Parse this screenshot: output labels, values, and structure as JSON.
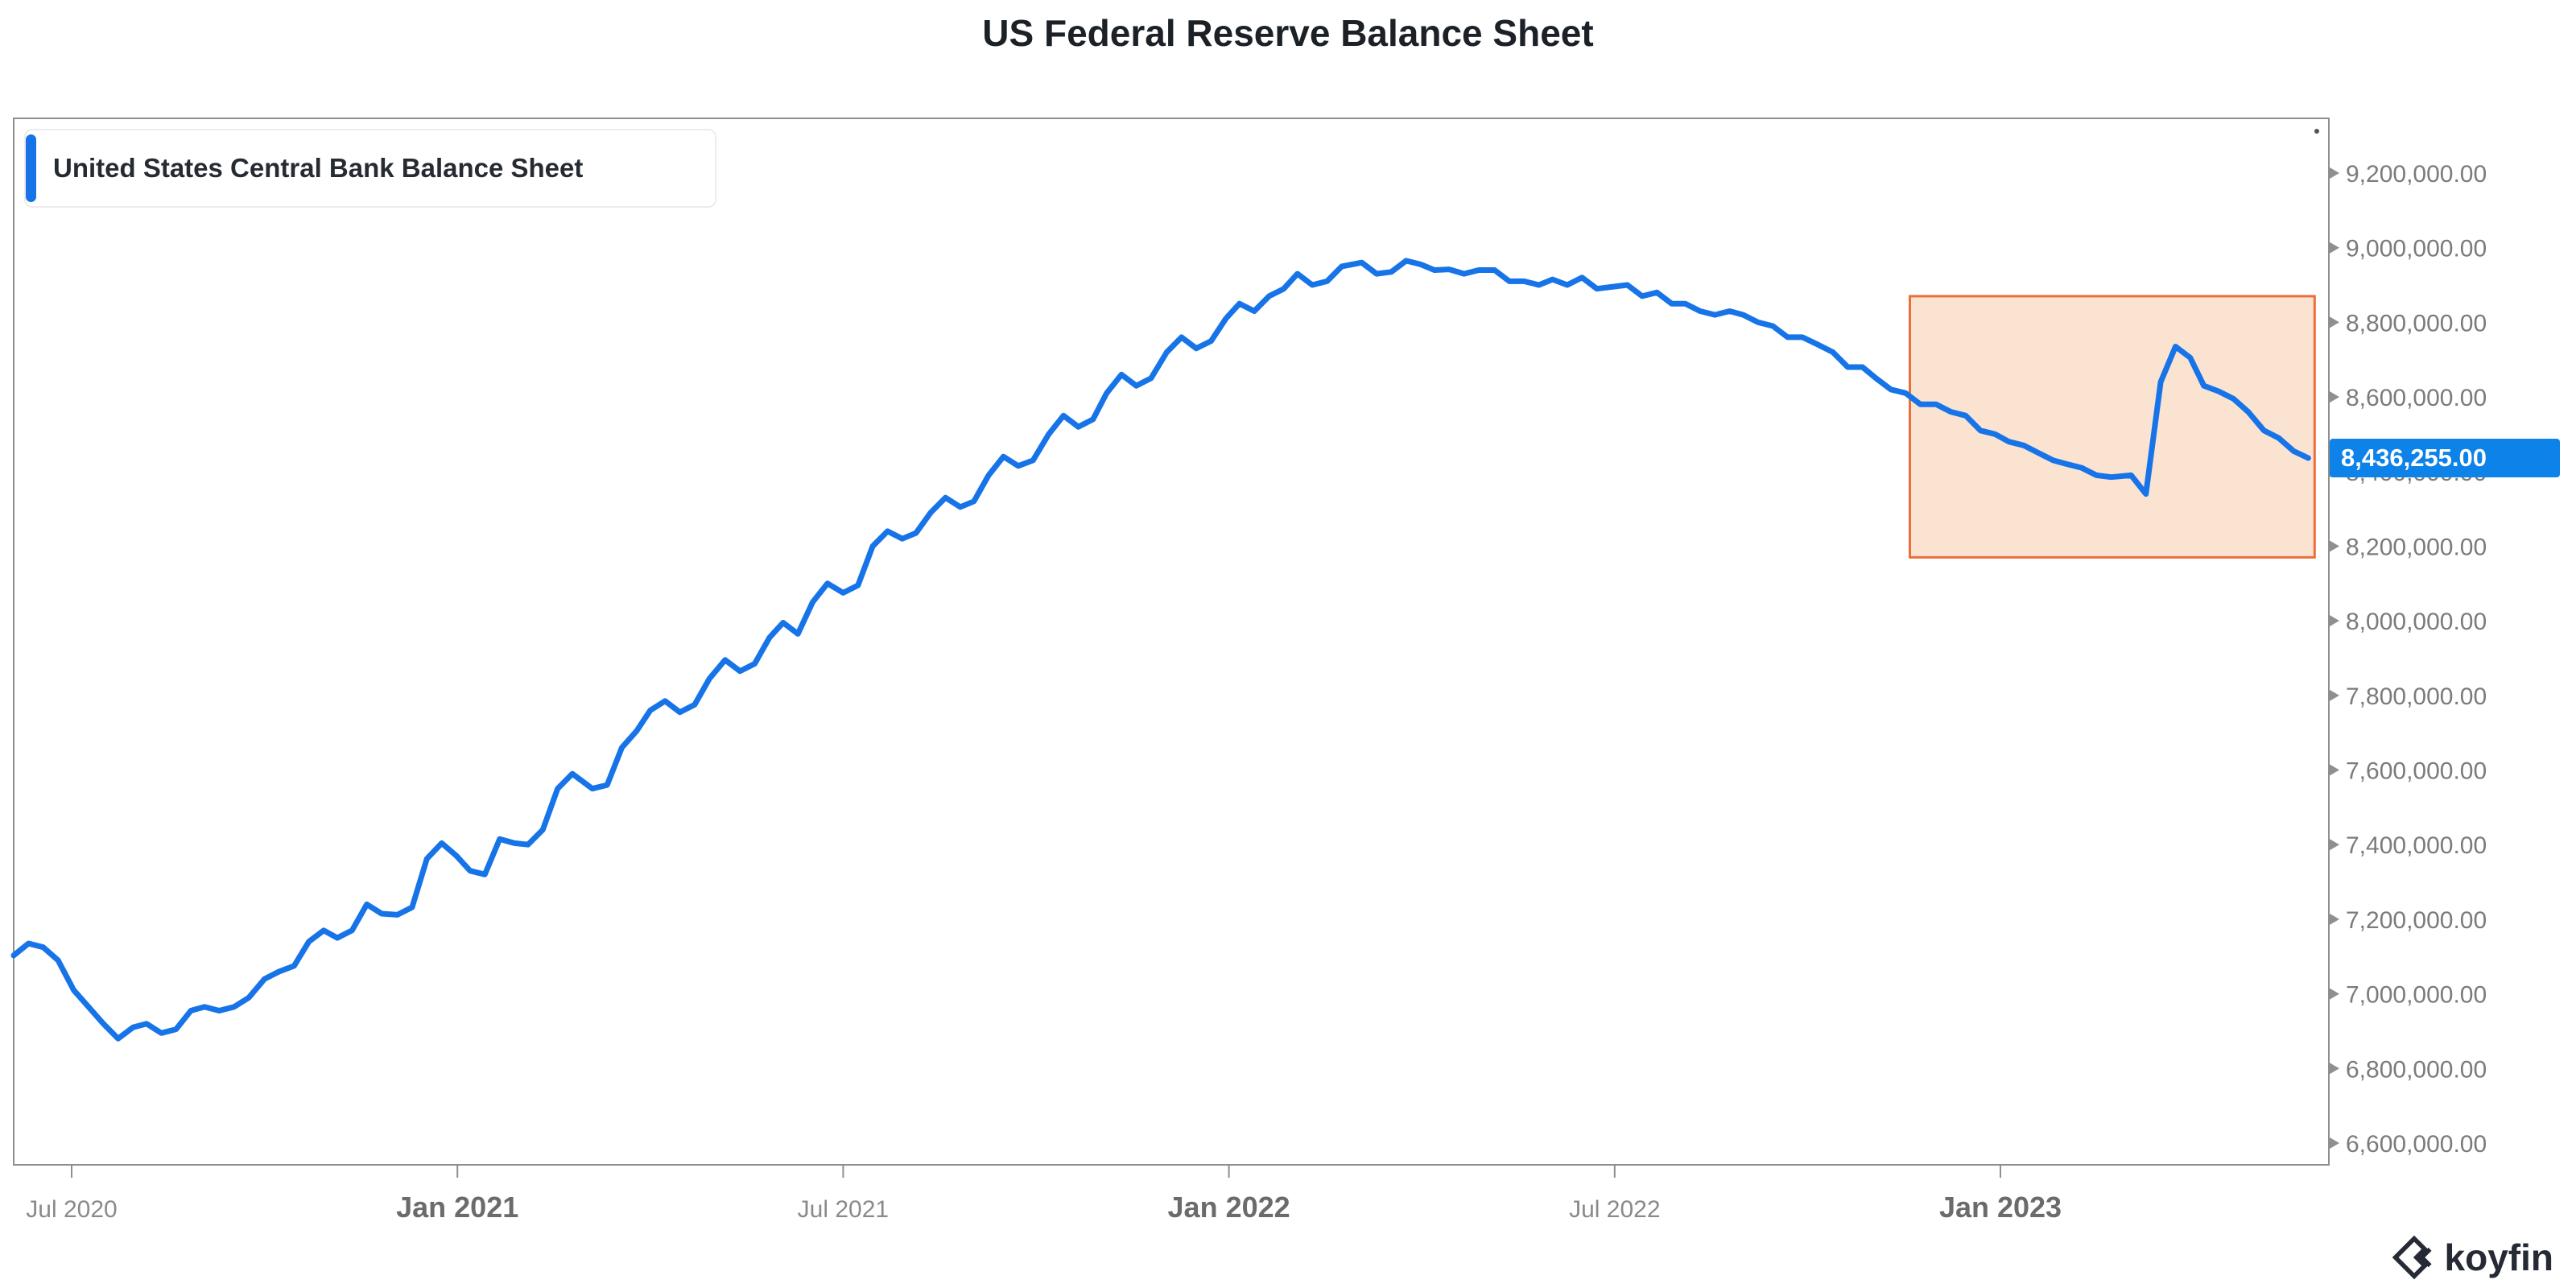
{
  "title": "US Federal Reserve Balance Sheet",
  "legend": {
    "label": "United States Central Bank Balance Sheet",
    "accent_color": "#1774E8"
  },
  "last_value_label": "8,436,255.00",
  "watermark": {
    "brand": "koyfin",
    "icon": "koyfin-diamond-chevron-icon"
  },
  "colors": {
    "line": "#1774E8",
    "last_value_bg": "#0D82E8",
    "axis": "#8f8f8f",
    "highlight_fill": "#FBE3D2",
    "highlight_stroke": "#EB6F3A"
  },
  "chart_data": {
    "type": "line",
    "title": "US Federal Reserve Balance Sheet",
    "series_name": "United States Central Bank Balance Sheet",
    "x_range": [
      "2020-06-04",
      "2023-05-25"
    ],
    "ylim": [
      6500000,
      9300000
    ],
    "yaxis_side": "right",
    "grid": false,
    "legend_position": "top-left",
    "last_value": 8436255,
    "y_ticks": [
      {
        "value": 9200000,
        "label": "9,200,000.00"
      },
      {
        "value": 9000000,
        "label": "9,000,000.00"
      },
      {
        "value": 8800000,
        "label": "8,800,000.00"
      },
      {
        "value": 8600000,
        "label": "8,600,000.00"
      },
      {
        "value": 8400000,
        "label": "8,400,000.00"
      },
      {
        "value": 8200000,
        "label": "8,200,000.00"
      },
      {
        "value": 8000000,
        "label": "8,000,000.00"
      },
      {
        "value": 7800000,
        "label": "7,800,000.00"
      },
      {
        "value": 7600000,
        "label": "7,600,000.00"
      },
      {
        "value": 7400000,
        "label": "7,400,000.00"
      },
      {
        "value": 7200000,
        "label": "7,200,000.00"
      },
      {
        "value": 7000000,
        "label": "7,000,000.00"
      },
      {
        "value": 6800000,
        "label": "6,800,000.00"
      },
      {
        "value": 6600000,
        "label": "6,600,000.00"
      }
    ],
    "x_ticks": [
      {
        "date": "2020-07-01",
        "label": "Jul 2020",
        "major": false
      },
      {
        "date": "2021-01-01",
        "label": "Jan 2021",
        "major": true
      },
      {
        "date": "2021-07-01",
        "label": "Jul 2021",
        "major": false
      },
      {
        "date": "2022-01-01",
        "label": "Jan 2022",
        "major": true
      },
      {
        "date": "2022-07-01",
        "label": "Jul 2022",
        "major": false
      },
      {
        "date": "2023-01-01",
        "label": "Jan 2023",
        "major": true
      }
    ],
    "highlight_region": {
      "x_start": "2022-11-19",
      "x_end": "2023-05-28",
      "y_top": 8870000,
      "y_bottom": 8170000
    },
    "points": [
      [
        "2020-06-04",
        7103000
      ],
      [
        "2020-06-11",
        7135000
      ],
      [
        "2020-06-18",
        7125000
      ],
      [
        "2020-06-25",
        7090000
      ],
      [
        "2020-07-02",
        7010000
      ],
      [
        "2020-07-09",
        6965000
      ],
      [
        "2020-07-16",
        6920000
      ],
      [
        "2020-07-23",
        6880000
      ],
      [
        "2020-07-30",
        6910000
      ],
      [
        "2020-08-06",
        6920000
      ],
      [
        "2020-08-13",
        6895000
      ],
      [
        "2020-08-20",
        6905000
      ],
      [
        "2020-08-27",
        6955000
      ],
      [
        "2020-09-03",
        6965000
      ],
      [
        "2020-09-10",
        6955000
      ],
      [
        "2020-09-17",
        6965000
      ],
      [
        "2020-09-24",
        6990000
      ],
      [
        "2020-10-01",
        7040000
      ],
      [
        "2020-10-08",
        7060000
      ],
      [
        "2020-10-15",
        7075000
      ],
      [
        "2020-10-22",
        7140000
      ],
      [
        "2020-10-29",
        7170000
      ],
      [
        "2020-11-05",
        7150000
      ],
      [
        "2020-11-12",
        7170000
      ],
      [
        "2020-11-19",
        7240000
      ],
      [
        "2020-11-26",
        7215000
      ],
      [
        "2020-12-03",
        7212000
      ],
      [
        "2020-12-10",
        7232000
      ],
      [
        "2020-12-17",
        7362000
      ],
      [
        "2020-12-24",
        7404000
      ],
      [
        "2020-12-31",
        7370000
      ],
      [
        "2021-01-07",
        7330000
      ],
      [
        "2021-01-14",
        7320000
      ],
      [
        "2021-01-21",
        7415000
      ],
      [
        "2021-01-28",
        7404000
      ],
      [
        "2021-02-04",
        7400000
      ],
      [
        "2021-02-11",
        7440000
      ],
      [
        "2021-02-18",
        7550000
      ],
      [
        "2021-02-25",
        7590000
      ],
      [
        "2021-03-04",
        7550000
      ],
      [
        "2021-03-11",
        7560000
      ],
      [
        "2021-03-18",
        7660000
      ],
      [
        "2021-03-25",
        7705000
      ],
      [
        "2021-04-01",
        7760000
      ],
      [
        "2021-04-08",
        7785000
      ],
      [
        "2021-04-15",
        7755000
      ],
      [
        "2021-04-22",
        7775000
      ],
      [
        "2021-04-29",
        7845000
      ],
      [
        "2021-05-06",
        7895000
      ],
      [
        "2021-05-13",
        7865000
      ],
      [
        "2021-05-20",
        7885000
      ],
      [
        "2021-05-27",
        7955000
      ],
      [
        "2021-06-03",
        7995000
      ],
      [
        "2021-06-10",
        7965000
      ],
      [
        "2021-06-17",
        8050000
      ],
      [
        "2021-06-24",
        8100000
      ],
      [
        "2021-07-01",
        8075000
      ],
      [
        "2021-07-08",
        8095000
      ],
      [
        "2021-07-15",
        8200000
      ],
      [
        "2021-07-22",
        8240000
      ],
      [
        "2021-07-29",
        8220000
      ],
      [
        "2021-08-05",
        8235000
      ],
      [
        "2021-08-12",
        8290000
      ],
      [
        "2021-08-19",
        8330000
      ],
      [
        "2021-08-26",
        8305000
      ],
      [
        "2021-09-02",
        8320000
      ],
      [
        "2021-09-09",
        8390000
      ],
      [
        "2021-09-16",
        8440000
      ],
      [
        "2021-09-23",
        8415000
      ],
      [
        "2021-09-30",
        8430000
      ],
      [
        "2021-10-07",
        8500000
      ],
      [
        "2021-10-14",
        8550000
      ],
      [
        "2021-10-21",
        8520000
      ],
      [
        "2021-10-28",
        8540000
      ],
      [
        "2021-11-04",
        8610000
      ],
      [
        "2021-11-11",
        8660000
      ],
      [
        "2021-11-18",
        8630000
      ],
      [
        "2021-11-25",
        8650000
      ],
      [
        "2021-12-02",
        8720000
      ],
      [
        "2021-12-09",
        8760000
      ],
      [
        "2021-12-16",
        8730000
      ],
      [
        "2021-12-23",
        8750000
      ],
      [
        "2021-12-30",
        8810000
      ],
      [
        "2022-01-06",
        8850000
      ],
      [
        "2022-01-13",
        8830000
      ],
      [
        "2022-01-20",
        8870000
      ],
      [
        "2022-01-27",
        8890000
      ],
      [
        "2022-02-03",
        8930000
      ],
      [
        "2022-02-10",
        8900000
      ],
      [
        "2022-02-17",
        8910000
      ],
      [
        "2022-02-24",
        8950000
      ],
      [
        "2022-03-03",
        8960000
      ],
      [
        "2022-03-10",
        8930000
      ],
      [
        "2022-03-17",
        8935000
      ],
      [
        "2022-03-24",
        8965000
      ],
      [
        "2022-03-31",
        8955000
      ],
      [
        "2022-04-07",
        8940000
      ],
      [
        "2022-04-14",
        8942000
      ],
      [
        "2022-04-21",
        8930000
      ],
      [
        "2022-04-28",
        8940000
      ],
      [
        "2022-05-05",
        8940000
      ],
      [
        "2022-05-12",
        8910000
      ],
      [
        "2022-05-19",
        8910000
      ],
      [
        "2022-05-26",
        8900000
      ],
      [
        "2022-06-02",
        8915000
      ],
      [
        "2022-06-09",
        8900000
      ],
      [
        "2022-06-16",
        8920000
      ],
      [
        "2022-06-23",
        8890000
      ],
      [
        "2022-06-30",
        8895000
      ],
      [
        "2022-07-07",
        8900000
      ],
      [
        "2022-07-14",
        8870000
      ],
      [
        "2022-07-21",
        8880000
      ],
      [
        "2022-07-28",
        8850000
      ],
      [
        "2022-08-04",
        8850000
      ],
      [
        "2022-08-11",
        8830000
      ],
      [
        "2022-08-18",
        8820000
      ],
      [
        "2022-08-25",
        8830000
      ],
      [
        "2022-09-01",
        8820000
      ],
      [
        "2022-09-08",
        8800000
      ],
      [
        "2022-09-15",
        8790000
      ],
      [
        "2022-09-22",
        8760000
      ],
      [
        "2022-09-29",
        8760000
      ],
      [
        "2022-10-06",
        8740000
      ],
      [
        "2022-10-13",
        8720000
      ],
      [
        "2022-10-20",
        8680000
      ],
      [
        "2022-10-27",
        8680000
      ],
      [
        "2022-11-03",
        8650000
      ],
      [
        "2022-11-10",
        8620000
      ],
      [
        "2022-11-17",
        8610000
      ],
      [
        "2022-11-24",
        8580000
      ],
      [
        "2022-12-01",
        8580000
      ],
      [
        "2022-12-08",
        8560000
      ],
      [
        "2022-12-15",
        8550000
      ],
      [
        "2022-12-22",
        8510000
      ],
      [
        "2022-12-29",
        8500000
      ],
      [
        "2023-01-05",
        8480000
      ],
      [
        "2023-01-12",
        8470000
      ],
      [
        "2023-01-19",
        8450000
      ],
      [
        "2023-01-26",
        8430000
      ],
      [
        "2023-02-02",
        8420000
      ],
      [
        "2023-02-09",
        8410000
      ],
      [
        "2023-02-16",
        8390000
      ],
      [
        "2023-02-23",
        8385000
      ],
      [
        "2023-03-02",
        8390000
      ],
      [
        "2023-03-09",
        8340000
      ],
      [
        "2023-03-16",
        8640000
      ],
      [
        "2023-03-23",
        8735000
      ],
      [
        "2023-03-30",
        8705000
      ],
      [
        "2023-04-06",
        8630000
      ],
      [
        "2023-04-13",
        8615000
      ],
      [
        "2023-04-20",
        8595000
      ],
      [
        "2023-04-27",
        8560000
      ],
      [
        "2023-05-04",
        8510000
      ],
      [
        "2023-05-11",
        8490000
      ],
      [
        "2023-05-18",
        8455000
      ],
      [
        "2023-05-25",
        8436255
      ]
    ]
  }
}
